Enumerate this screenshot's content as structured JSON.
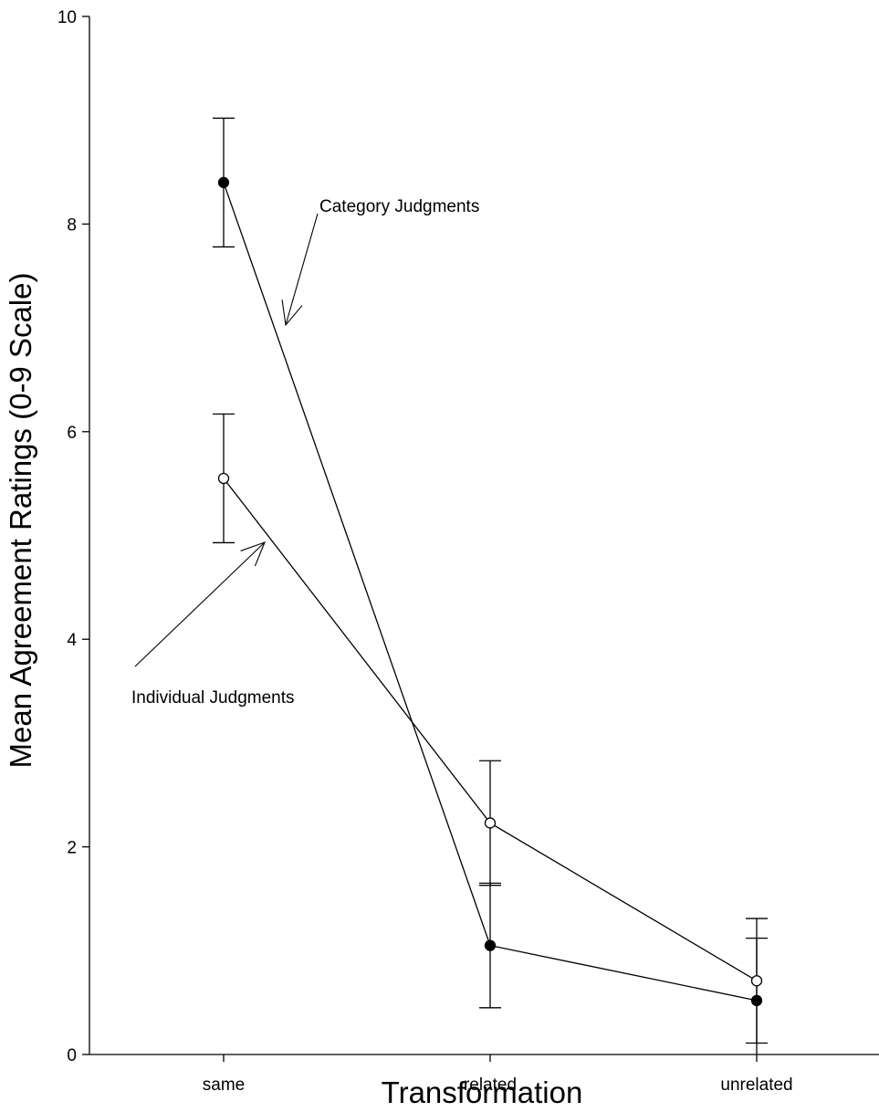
{
  "chart_data": {
    "type": "line",
    "title": "",
    "xlabel": "Transformation",
    "ylabel": "Mean Agreement Ratings (0-9 Scale)",
    "categories": [
      "same",
      "related",
      "unrelated"
    ],
    "ylim": [
      0,
      10
    ],
    "yticks": [
      "0",
      "2",
      "4",
      "6",
      "8",
      "10"
    ],
    "grid": false,
    "legend": "none",
    "series": [
      {
        "name": "Category Judgments",
        "marker": "filled-circle",
        "values": [
          8.4,
          1.05,
          0.52
        ],
        "error": [
          0.62,
          0.6,
          0.6
        ]
      },
      {
        "name": "Individual Judgments",
        "marker": "open-circle",
        "values": [
          5.55,
          2.23,
          0.71
        ],
        "error": [
          0.62,
          0.6,
          0.6
        ]
      }
    ],
    "annotations": [
      {
        "text": "Category Judgments",
        "series": 0
      },
      {
        "text": "Individual Judgments",
        "series": 1
      }
    ],
    "colors": {
      "line": "#000000",
      "background": "#ffffff"
    }
  }
}
